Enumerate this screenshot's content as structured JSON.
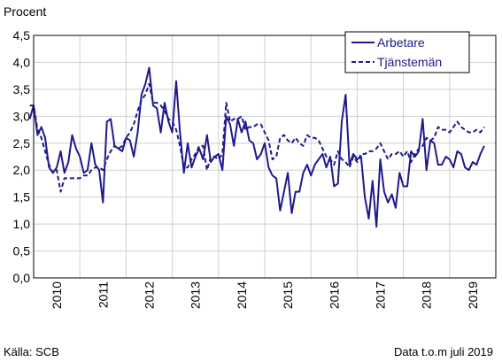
{
  "chart_data": {
    "type": "line",
    "title": "",
    "ylabel": "Procent",
    "xlabel": "",
    "ylim": [
      0,
      4.5
    ],
    "yticks": [
      "0,0",
      "0,5",
      "1,0",
      "1,5",
      "2,0",
      "2,5",
      "3,0",
      "3,5",
      "4,0",
      "4,5"
    ],
    "ytick_values": [
      0,
      0.5,
      1.0,
      1.5,
      2.0,
      2.5,
      3.0,
      3.5,
      4.0,
      4.5
    ],
    "years": [
      "2010",
      "2011",
      "2012",
      "2013",
      "2014",
      "2015",
      "2016",
      "2017",
      "2018",
      "2019"
    ],
    "x_start": "2009-12",
    "x_end": "2019-07",
    "grid": true,
    "legend_position": "top-right",
    "series": [
      {
        "name": "Arbetare",
        "style": "solid",
        "color": "#1f1a8c",
        "values": [
          2.95,
          3.2,
          2.65,
          2.8,
          2.6,
          2.05,
          1.95,
          2.05,
          2.35,
          1.95,
          2.15,
          2.65,
          2.4,
          2.25,
          1.95,
          2.0,
          2.5,
          2.1,
          2.0,
          1.4,
          2.9,
          2.95,
          2.45,
          2.4,
          2.35,
          2.6,
          2.55,
          2.25,
          2.7,
          3.4,
          3.6,
          3.9,
          3.2,
          3.15,
          2.7,
          3.25,
          2.9,
          2.7,
          3.65,
          2.7,
          1.95,
          2.5,
          2.05,
          2.25,
          2.4,
          2.2,
          2.65,
          2.15,
          2.25,
          2.3,
          2.0,
          3.0,
          2.85,
          2.45,
          2.95,
          2.7,
          2.9,
          2.55,
          2.5,
          2.2,
          2.3,
          2.5,
          2.05,
          1.9,
          1.85,
          1.25,
          1.6,
          1.95,
          1.2,
          1.6,
          1.6,
          1.95,
          2.1,
          1.9,
          2.1,
          2.2,
          2.3,
          2.05,
          2.25,
          1.7,
          1.75,
          2.9,
          3.4,
          2.1,
          2.3,
          2.2,
          2.25,
          1.5,
          1.1,
          1.8,
          0.95,
          2.2,
          1.6,
          1.4,
          1.55,
          1.3,
          1.95,
          1.7,
          1.7,
          2.35,
          2.25,
          2.35,
          2.95,
          2.0,
          2.55,
          2.5,
          2.1,
          2.1,
          2.25,
          2.2,
          2.05,
          2.35,
          2.3,
          2.05,
          2.0,
          2.15,
          2.1,
          2.3,
          2.45
        ]
      },
      {
        "name": "Tjänstemän",
        "style": "dashed",
        "color": "#1f1a8c",
        "values": [
          3.2,
          3.2,
          2.75,
          2.6,
          2.35,
          2.1,
          1.95,
          2.0,
          1.6,
          1.85,
          1.85,
          1.85,
          1.85,
          1.85,
          1.9,
          1.9,
          2.0,
          2.05,
          2.05,
          2.0,
          2.2,
          2.35,
          2.45,
          2.4,
          2.45,
          2.6,
          2.7,
          2.85,
          3.1,
          3.3,
          3.4,
          3.6,
          3.25,
          3.25,
          3.2,
          3.1,
          2.95,
          2.9,
          2.75,
          2.45,
          2.05,
          2.05,
          2.2,
          2.3,
          2.45,
          2.45,
          2.0,
          2.25,
          2.25,
          2.2,
          2.3,
          3.25,
          2.9,
          2.95,
          2.95,
          3.0,
          2.75,
          2.8,
          2.8,
          2.85,
          2.85,
          2.7,
          2.55,
          2.2,
          2.25,
          2.6,
          2.65,
          2.55,
          2.5,
          2.6,
          2.5,
          2.45,
          2.65,
          2.6,
          2.6,
          2.55,
          2.4,
          2.25,
          2.2,
          2.1,
          2.35,
          2.2,
          2.15,
          2.05,
          2.25,
          2.15,
          2.3,
          2.3,
          2.35,
          2.35,
          2.4,
          2.5,
          2.35,
          2.2,
          2.3,
          2.3,
          2.35,
          2.25,
          2.35,
          2.15,
          2.3,
          2.4,
          2.45,
          2.6,
          2.55,
          2.6,
          2.8,
          2.75,
          2.75,
          2.7,
          2.8,
          2.9,
          2.8,
          2.75,
          2.7,
          2.7,
          2.75,
          2.7,
          2.8
        ]
      }
    ]
  },
  "footer": {
    "source": "Källa: SCB",
    "data_info": "Data t.o.m juli 2019"
  }
}
